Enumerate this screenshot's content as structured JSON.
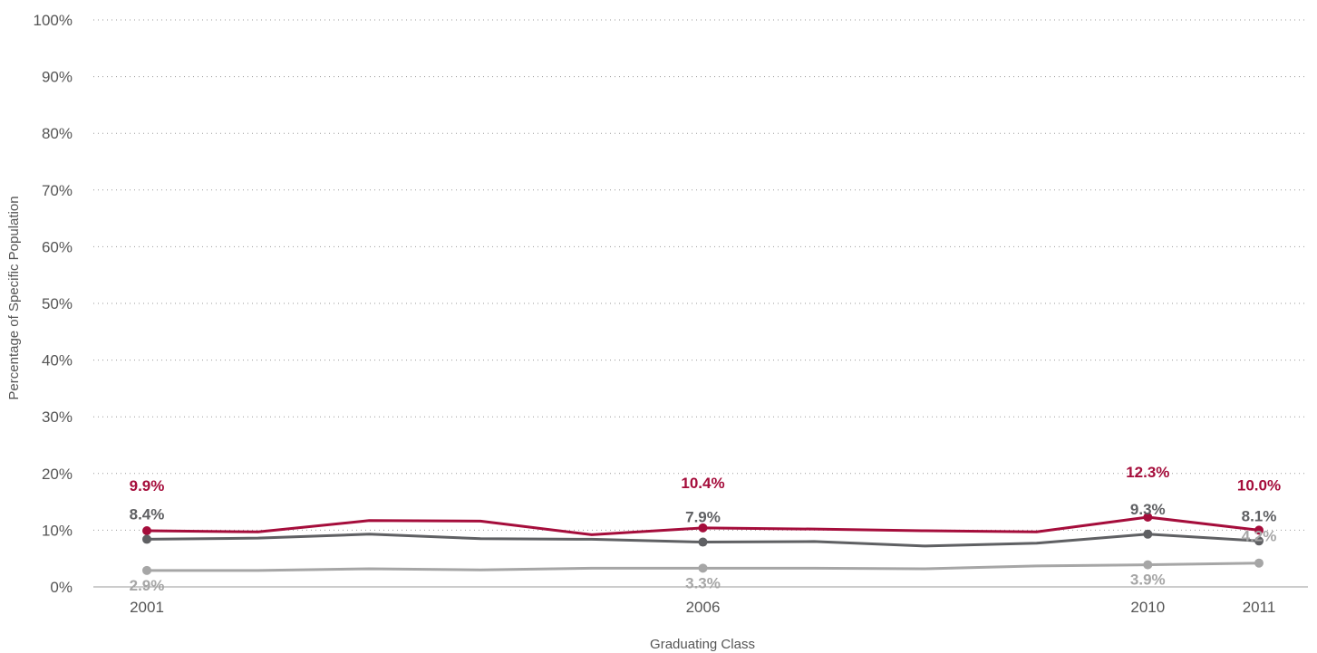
{
  "chart_data": {
    "type": "line",
    "title": "",
    "xlabel": "Graduating Class",
    "ylabel": "Percentage of Specific Population",
    "ylim": [
      0,
      100
    ],
    "yticks": [
      "0%",
      "10%",
      "20%",
      "30%",
      "40%",
      "50%",
      "60%",
      "70%",
      "80%",
      "90%",
      "100%"
    ],
    "grid": true,
    "x": [
      2001,
      2002,
      2003,
      2004,
      2005,
      2006,
      2007,
      2008,
      2009,
      2010,
      2011
    ],
    "xtick_labels": [
      {
        "x": 2001,
        "label": "2001"
      },
      {
        "x": 2006,
        "label": "2006"
      },
      {
        "x": 2010,
        "label": "2010"
      },
      {
        "x": 2011,
        "label": "2011"
      }
    ],
    "series": [
      {
        "color": "#a50d3b",
        "values": [
          9.9,
          9.7,
          11.7,
          11.6,
          9.2,
          10.4,
          10.2,
          9.9,
          9.7,
          12.3,
          10.0
        ],
        "labels": [
          {
            "x": 2001,
            "text": "9.9%"
          },
          {
            "x": 2006,
            "text": "10.4%"
          },
          {
            "x": 2010,
            "text": "12.3%"
          },
          {
            "x": 2011,
            "text": "10.0%"
          }
        ]
      },
      {
        "color": "#5f6063",
        "values": [
          8.4,
          8.6,
          9.3,
          8.5,
          8.4,
          7.9,
          8.0,
          7.2,
          7.7,
          9.3,
          8.1
        ],
        "labels": [
          {
            "x": 2001,
            "text": "8.4%"
          },
          {
            "x": 2006,
            "text": "7.9%"
          },
          {
            "x": 2010,
            "text": "9.3%"
          },
          {
            "x": 2011,
            "text": "8.1%"
          }
        ]
      },
      {
        "color": "#a6a6a6",
        "values": [
          2.9,
          2.9,
          3.2,
          3.0,
          3.3,
          3.3,
          3.3,
          3.2,
          3.7,
          3.9,
          4.2
        ],
        "labels": [
          {
            "x": 2001,
            "text": "2.9%"
          },
          {
            "x": 2006,
            "text": "3.3%"
          },
          {
            "x": 2010,
            "text": "3.9%"
          },
          {
            "x": 2011,
            "text": "4.2%"
          }
        ]
      }
    ]
  }
}
